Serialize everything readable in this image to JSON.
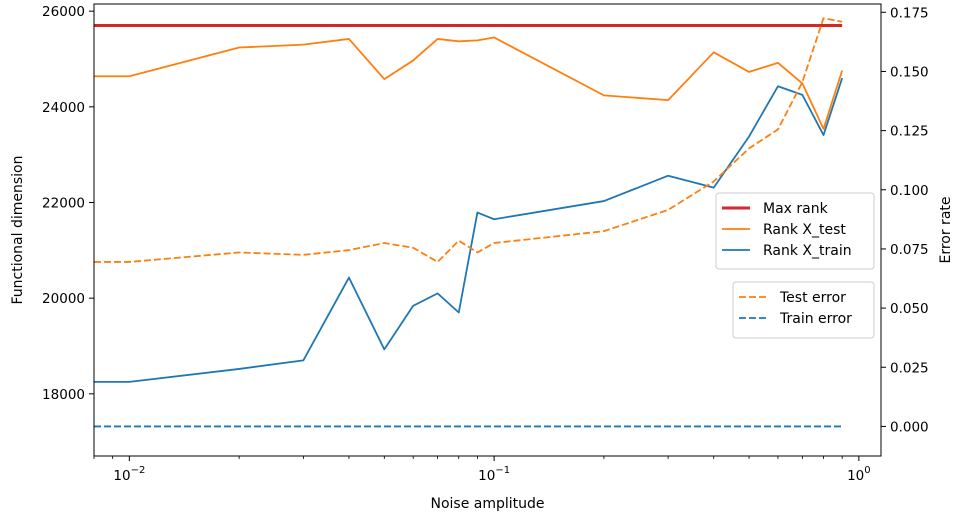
{
  "chart_data": {
    "type": "line",
    "xlabel": "Noise amplitude",
    "ylabel_left": "Functional dimension",
    "ylabel_right": "Error rate",
    "xscale": "log",
    "xlim": [
      0.008,
      1.15
    ],
    "ylim_left": [
      16700,
      26150
    ],
    "ylim_right": [
      -0.0125,
      0.1785
    ],
    "x_ticks": [
      {
        "value": 0.01,
        "base": "10",
        "exp": "−2"
      },
      {
        "value": 0.1,
        "base": "10",
        "exp": "−1"
      },
      {
        "value": 1,
        "base": "10",
        "exp": "0"
      }
    ],
    "y_ticks_left": [
      18000,
      20000,
      22000,
      24000,
      26000
    ],
    "y_tick_labels_left": [
      "18000",
      "20000",
      "22000",
      "24000",
      "26000"
    ],
    "y_ticks_right": [
      0.0,
      0.025,
      0.05,
      0.075,
      0.1,
      0.125,
      0.15,
      0.175
    ],
    "y_tick_labels_right": [
      "0.000",
      "0.025",
      "0.050",
      "0.075",
      "0.100",
      "0.125",
      "0.150",
      "0.175"
    ],
    "x": [
      0.008,
      0.01,
      0.02,
      0.03,
      0.04,
      0.05,
      0.06,
      0.07,
      0.08,
      0.09,
      0.1,
      0.2,
      0.3,
      0.4,
      0.5,
      0.6,
      0.7,
      0.8,
      0.9
    ],
    "series": [
      {
        "name": "Max rank",
        "axis": "left",
        "style": "solid",
        "width": 3,
        "color": "#d62728",
        "values": [
          25700,
          25700,
          25700,
          25700,
          25700,
          25700,
          25700,
          25700,
          25700,
          25700,
          25700,
          25700,
          25700,
          25700,
          25700,
          25700,
          25700,
          25700,
          25700
        ]
      },
      {
        "name": "Rank X_test",
        "axis": "left",
        "style": "solid",
        "width": 1.8,
        "color": "#ff7f0e",
        "values": [
          24640,
          24640,
          25240,
          25300,
          25420,
          24580,
          24970,
          25420,
          25370,
          25390,
          25450,
          24240,
          24140,
          25140,
          24730,
          24920,
          24490,
          23540,
          24760
        ]
      },
      {
        "name": "Rank X_train",
        "axis": "left",
        "style": "solid",
        "width": 1.8,
        "color": "#1f77b4",
        "values": [
          18250,
          18250,
          18520,
          18700,
          20430,
          18930,
          19840,
          20100,
          19700,
          21790,
          21650,
          22030,
          22560,
          22310,
          23380,
          24430,
          24250,
          23410,
          24600
        ]
      },
      {
        "name": "Test error",
        "axis": "right",
        "style": "dashed",
        "width": 1.8,
        "color": "#ff7f0e",
        "values": [
          0.0695,
          0.0695,
          0.0735,
          0.0725,
          0.0745,
          0.0775,
          0.0755,
          0.0695,
          0.0785,
          0.0735,
          0.0775,
          0.0825,
          0.0915,
          0.1035,
          0.1175,
          0.1255,
          0.1455,
          0.1725,
          0.171
        ]
      },
      {
        "name": "Train error",
        "axis": "right",
        "style": "dashed",
        "width": 1.8,
        "color": "#1f77b4",
        "values": [
          0.0,
          0.0,
          0.0,
          0.0,
          0.0,
          0.0,
          0.0,
          0.0,
          0.0,
          0.0,
          0.0,
          0.0,
          0.0,
          0.0,
          0.0,
          0.0,
          0.0,
          0.0,
          0.0
        ]
      }
    ],
    "legends": [
      {
        "placement": "center-right",
        "entries": [
          "Max rank",
          "Rank X_test",
          "Rank X_train"
        ]
      },
      {
        "placement": "center-right-below",
        "entries": [
          "Test error",
          "Train error"
        ]
      }
    ],
    "grid": false
  }
}
